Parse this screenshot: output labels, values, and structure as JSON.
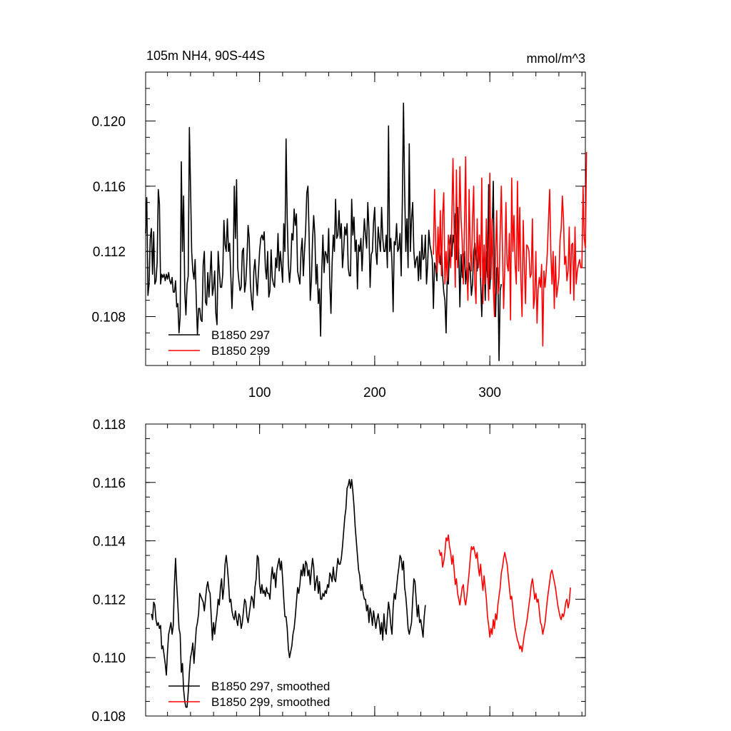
{
  "chart_data": [
    {
      "type": "line",
      "title_left": "105m NH4, 90S-44S",
      "title_right": "mmol/m^3",
      "xlim": [
        1,
        383
      ],
      "ylim": [
        0.105,
        0.123
      ],
      "xticks": [
        100,
        200,
        300
      ],
      "xtick_labels": [
        "100",
        "200",
        "300"
      ],
      "yticks": [
        0.108,
        0.112,
        0.116,
        0.12
      ],
      "ytick_labels": [
        "0.108",
        "0.112",
        "0.116",
        "0.120"
      ],
      "legend_position": "bottom-left",
      "series": [
        {
          "name": "B1850 297",
          "color": "#000000",
          "x_start": 1,
          "values": [
            0.1131,
            0.1153,
            0.1093,
            0.11,
            0.1128,
            0.1134,
            0.1106,
            0.1132,
            0.11,
            0.1102,
            0.1113,
            0.1158,
            0.1149,
            0.11,
            0.1106,
            0.1104,
            0.1106,
            0.1102,
            0.1106,
            0.1103,
            0.1107,
            0.1102,
            0.11,
            0.1104,
            0.1095,
            0.1095,
            0.1102,
            0.1086,
            0.1088,
            0.107,
            0.108,
            0.1175,
            0.112,
            0.1154,
            0.1095,
            0.1081,
            0.11,
            0.1105,
            0.1196,
            0.116,
            0.112,
            0.1108,
            0.1103,
            0.1115,
            0.109,
            0.1069,
            0.1085,
            0.1085,
            0.1078,
            0.1077,
            0.1112,
            0.112,
            0.1089,
            0.1087,
            0.1107,
            0.1092,
            0.1105,
            0.112,
            0.1093,
            0.1098,
            0.1108,
            0.1082,
            0.1075,
            0.112,
            0.1108,
            0.1098,
            0.1098,
            0.1106,
            0.1139,
            0.1124,
            0.112,
            0.114,
            0.112,
            0.1125,
            0.1105,
            0.1085,
            0.1105,
            0.116,
            0.1128,
            0.1164,
            0.111,
            0.1102,
            0.1096,
            0.1098,
            0.112,
            0.1122,
            0.1095,
            0.1101,
            0.1115,
            0.1136,
            0.1128,
            0.11,
            0.109,
            0.1084,
            0.1108,
            0.1115,
            0.1103,
            0.1093,
            0.1107,
            0.112,
            0.1128,
            0.113,
            0.1127,
            0.1132,
            0.111,
            0.1103,
            0.112,
            0.1092,
            0.1096,
            0.1121,
            0.1104,
            0.11,
            0.1098,
            0.1116,
            0.111,
            0.1131,
            0.1108,
            0.112,
            0.1111,
            0.1101,
            0.1137,
            0.112,
            0.1189,
            0.114,
            0.1112,
            0.1101,
            0.111,
            0.1131,
            0.1127,
            0.1146,
            0.1136,
            0.1143,
            0.1108,
            0.1104,
            0.11,
            0.112,
            0.1128,
            0.1105,
            0.112,
            0.1133,
            0.1156,
            0.116,
            0.113,
            0.109,
            0.1102,
            0.1127,
            0.1142,
            0.113,
            0.11,
            0.1112,
            0.1088,
            0.1097,
            0.1068,
            0.1108,
            0.113,
            0.1107,
            0.112,
            0.1118,
            0.1113,
            0.1134,
            0.11,
            0.1082,
            0.1113,
            0.113,
            0.112,
            0.1152,
            0.1128,
            0.113,
            0.1145,
            0.1128,
            0.1137,
            0.111,
            0.112,
            0.1135,
            0.113,
            0.1137,
            0.111,
            0.1105,
            0.1105,
            0.1152,
            0.113,
            0.1141,
            0.112,
            0.1127,
            0.1097,
            0.1124,
            0.112,
            0.1128,
            0.1108,
            0.1125,
            0.114,
            0.113,
            0.1122,
            0.115,
            0.1133,
            0.1098,
            0.1118,
            0.112,
            0.1138,
            0.1147,
            0.112,
            0.1112,
            0.1135,
            0.1127,
            0.112,
            0.1147,
            0.1128,
            0.112,
            0.112,
            0.113,
            0.111,
            0.1197,
            0.112,
            0.1128,
            0.1113,
            0.1083,
            0.1126,
            0.1124,
            0.1137,
            0.112,
            0.1122,
            0.1131,
            0.1105,
            0.115,
            0.1211,
            0.1158,
            0.112,
            0.114,
            0.111,
            0.1186,
            0.112,
            0.114,
            0.115,
            0.112,
            0.111,
            0.1115,
            0.1117,
            0.1102,
            0.112,
            0.1103,
            0.113,
            0.1115,
            0.1116,
            0.113,
            0.11,
            0.1112,
            0.1133,
            0.1124,
            0.112,
            0.1115,
            0.1085,
            0.1113,
            0.111,
            0.1102,
            0.113,
            0.112,
            0.1112,
            0.1124,
            0.1105,
            0.1095,
            0.109,
            0.107,
            0.1104,
            0.11,
            0.1123,
            0.113,
            0.1117,
            0.113,
            0.1125,
            0.1143,
            0.1115,
            0.1147,
            0.112,
            0.1086,
            0.1118,
            0.1104,
            0.1118,
            0.112,
            0.11,
            0.111,
            0.1098,
            0.1113,
            0.1108,
            0.1093,
            0.11,
            0.112,
            0.1125,
            0.1116,
            0.1108,
            0.112,
            0.1118,
            0.1102,
            0.108,
            0.1108,
            0.112,
            0.109,
            0.112,
            0.1104,
            0.1161,
            0.1097,
            0.111,
            0.113,
            0.1163,
            0.1104,
            0.108,
            0.111,
            0.111,
            0.1053,
            0.1096,
            0.11
          ]
        },
        {
          "name": "B1850 299",
          "color": "#ff0000",
          "x_start": 251,
          "values": [
            0.1118,
            0.1158,
            0.1125,
            0.1107,
            0.1135,
            0.1113,
            0.1145,
            0.1105,
            0.1142,
            0.1156,
            0.11,
            0.112,
            0.1102,
            0.113,
            0.1124,
            0.111,
            0.114,
            0.1177,
            0.1134,
            0.1098,
            0.117,
            0.111,
            0.1127,
            0.1172,
            0.114,
            0.1126,
            0.11,
            0.1137,
            0.1178,
            0.111,
            0.109,
            0.1158,
            0.112,
            0.1108,
            0.114,
            0.116,
            0.11,
            0.1088,
            0.114,
            0.111,
            0.113,
            0.1104,
            0.1165,
            0.1088,
            0.1124,
            0.11,
            0.114,
            0.111,
            0.109,
            0.1168,
            0.1103,
            0.114,
            0.1099,
            0.108,
            0.112,
            0.1145,
            0.1094,
            0.1098,
            0.1132,
            0.116,
            0.1121,
            0.1085,
            0.111,
            0.115,
            0.1112,
            0.1108,
            0.1131,
            0.1078,
            0.1165,
            0.112,
            0.1142,
            0.1112,
            0.11,
            0.1163,
            0.1108,
            0.1147,
            0.1103,
            0.108,
            0.1139,
            0.1111,
            0.1088,
            0.1124,
            0.1123,
            0.112,
            0.1104,
            0.1106,
            0.114,
            0.1085,
            0.1092,
            0.112,
            0.1076,
            0.1097,
            0.1104,
            0.1098,
            0.1112,
            0.1062,
            0.1108,
            0.1098,
            0.1108,
            0.112,
            0.114,
            0.1158,
            0.112,
            0.11,
            0.112,
            0.1085,
            0.1117,
            0.1092,
            0.1098,
            0.1104,
            0.1127,
            0.1134,
            0.1154,
            0.114,
            0.1112,
            0.1117,
            0.1102,
            0.1108,
            0.1135,
            0.1094,
            0.1124,
            0.1125,
            0.109,
            0.1135,
            0.11,
            0.1108,
            0.1112,
            0.1115,
            0.111,
            0.111,
            0.116,
            0.1128,
            0.1122,
            0.1181
          ]
        }
      ]
    },
    {
      "type": "line",
      "xlim": [
        1,
        383
      ],
      "ylim": [
        0.108,
        0.118
      ],
      "xticks": [
        100,
        200,
        300
      ],
      "yticks": [
        0.108,
        0.11,
        0.112,
        0.114,
        0.116,
        0.118
      ],
      "ytick_labels": [
        "0.108",
        "0.110",
        "0.112",
        "0.114",
        "0.116",
        "0.118"
      ],
      "legend_position": "bottom-left",
      "series": [
        {
          "name": "B1850 297, smoothed",
          "color": "#000000",
          "x_start": 6,
          "values": [
            0.1115,
            0.1113,
            0.1119,
            0.1118,
            0.1113,
            0.1111,
            0.1112,
            0.111,
            0.1111,
            0.1103,
            0.1104,
            0.1101,
            0.1098,
            0.1094,
            0.1102,
            0.1108,
            0.111,
            0.1112,
            0.1108,
            0.1111,
            0.1125,
            0.1134,
            0.1125,
            0.1118,
            0.111,
            0.1108,
            0.1095,
            0.1098,
            0.1089,
            0.1085,
            0.1083,
            0.1083,
            0.1088,
            0.1095,
            0.11,
            0.1102,
            0.1105,
            0.1098,
            0.1104,
            0.111,
            0.1112,
            0.1115,
            0.1122,
            0.1121,
            0.112,
            0.1119,
            0.1116,
            0.112,
            0.1124,
            0.1126,
            0.1123,
            0.1122,
            0.1114,
            0.1106,
            0.1112,
            0.1108,
            0.1112,
            0.1115,
            0.112,
            0.1118,
            0.1124,
            0.1127,
            0.112,
            0.1124,
            0.1132,
            0.1135,
            0.1131,
            0.1126,
            0.1119,
            0.112,
            0.1116,
            0.1114,
            0.1113,
            0.1116,
            0.1113,
            0.1111,
            0.1115,
            0.1114,
            0.111,
            0.1112,
            0.1116,
            0.112,
            0.1119,
            0.1114,
            0.1112,
            0.1115,
            0.1118,
            0.1121,
            0.112,
            0.1117,
            0.1124,
            0.1127,
            0.1135,
            0.1134,
            0.1125,
            0.1122,
            0.1125,
            0.1122,
            0.1123,
            0.1121,
            0.1124,
            0.1122,
            0.1122,
            0.112,
            0.1127,
            0.1131,
            0.1127,
            0.1129,
            0.1124,
            0.113,
            0.1132,
            0.1134,
            0.113,
            0.1133,
            0.1127,
            0.112,
            0.1114,
            0.1114,
            0.111,
            0.1103,
            0.11,
            0.1102,
            0.1104,
            0.1108,
            0.111,
            0.1114,
            0.1119,
            0.1124,
            0.1122,
            0.1125,
            0.113,
            0.1128,
            0.1132,
            0.1128,
            0.1133,
            0.1132,
            0.1128,
            0.113,
            0.1125,
            0.113,
            0.1134,
            0.1131,
            0.1123,
            0.1126,
            0.1128,
            0.1122,
            0.1126,
            0.112,
            0.112,
            0.1122,
            0.1121,
            0.1123,
            0.1122,
            0.1125,
            0.1124,
            0.1129,
            0.1128,
            0.1126,
            0.1131,
            0.1127,
            0.1126,
            0.113,
            0.1134,
            0.1132,
            0.1132,
            0.1134,
            0.1138,
            0.1143,
            0.1148,
            0.1151,
            0.1158,
            0.1159,
            0.1161,
            0.1158,
            0.1161,
            0.1157,
            0.1152,
            0.1145,
            0.114,
            0.1135,
            0.113,
            0.1128,
            0.1123,
            0.1125,
            0.1122,
            0.112,
            0.112,
            0.1116,
            0.1118,
            0.1112,
            0.1117,
            0.1115,
            0.1111,
            0.1116,
            0.1113,
            0.111,
            0.1113,
            0.1115,
            0.1112,
            0.1108,
            0.1112,
            0.1106,
            0.1115,
            0.111,
            0.1108,
            0.1114,
            0.1119,
            0.1116,
            0.1111,
            0.1108,
            0.1117,
            0.1122,
            0.112,
            0.1124,
            0.1128,
            0.1131,
            0.1135,
            0.1134,
            0.113,
            0.1133,
            0.1124,
            0.1121,
            0.1116,
            0.111,
            0.1108,
            0.111,
            0.1112,
            0.112,
            0.1127,
            0.1126,
            0.112,
            0.1114,
            0.1118,
            0.1112,
            0.1113,
            0.111,
            0.1107,
            0.1114,
            0.1118
          ]
        },
        {
          "name": "B1850 299, smoothed",
          "color": "#ff0000",
          "x_start": 256,
          "values": [
            0.1137,
            0.1135,
            0.1136,
            0.1131,
            0.1133,
            0.1136,
            0.1141,
            0.114,
            0.1142,
            0.1138,
            0.1136,
            0.1132,
            0.1135,
            0.113,
            0.1125,
            0.1127,
            0.1122,
            0.112,
            0.1118,
            0.1121,
            0.1124,
            0.1125,
            0.112,
            0.1118,
            0.1121,
            0.1125,
            0.1129,
            0.1134,
            0.1138,
            0.1137,
            0.1138,
            0.1136,
            0.1134,
            0.1136,
            0.1131,
            0.1128,
            0.1132,
            0.1127,
            0.1123,
            0.1128,
            0.1124,
            0.112,
            0.1114,
            0.1111,
            0.1107,
            0.111,
            0.1108,
            0.1113,
            0.111,
            0.1115,
            0.1113,
            0.1118,
            0.1121,
            0.1124,
            0.1129,
            0.1131,
            0.1134,
            0.1136,
            0.1134,
            0.1132,
            0.1128,
            0.1124,
            0.112,
            0.1121,
            0.1117,
            0.1113,
            0.111,
            0.1108,
            0.1106,
            0.1105,
            0.1103,
            0.1104,
            0.1102,
            0.1105,
            0.1108,
            0.111,
            0.1112,
            0.1115,
            0.1118,
            0.1121,
            0.1125,
            0.1127,
            0.1124,
            0.112,
            0.1122,
            0.1119,
            0.112,
            0.1116,
            0.1112,
            0.1111,
            0.1108,
            0.111,
            0.1112,
            0.1116,
            0.112,
            0.1123,
            0.1126,
            0.1129,
            0.113,
            0.1128,
            0.1126,
            0.1124,
            0.1121,
            0.1118,
            0.1116,
            0.1114,
            0.1113,
            0.1115,
            0.1114,
            0.1116,
            0.1119,
            0.112,
            0.1117,
            0.1119,
            0.1124
          ]
        }
      ]
    }
  ]
}
